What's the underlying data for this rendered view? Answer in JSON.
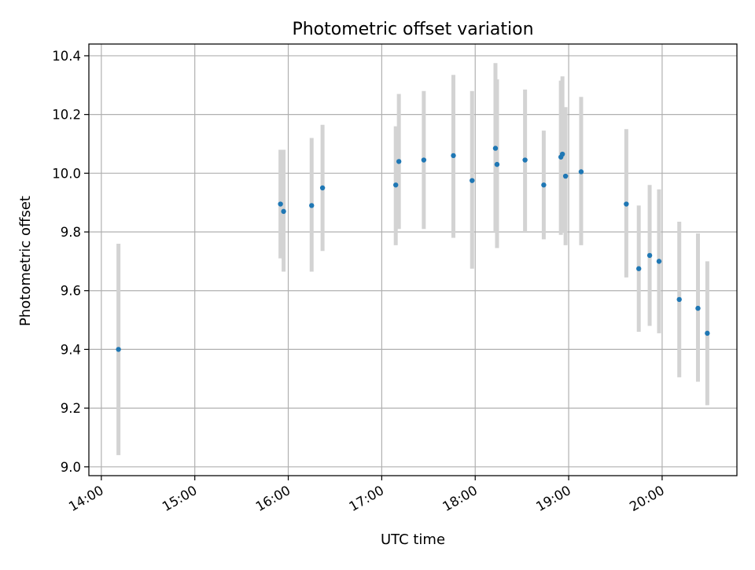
{
  "chart_data": {
    "type": "scatter",
    "title": "Photometric offset variation",
    "xlabel": "UTC time",
    "ylabel": "Photometric offset",
    "xlim": [
      "13:52",
      "20:48"
    ],
    "ylim": [
      8.97,
      10.44
    ],
    "x_ticks": [
      "14:00",
      "15:00",
      "16:00",
      "17:00",
      "18:00",
      "19:00",
      "20:00"
    ],
    "y_ticks": [
      9.0,
      9.2,
      9.4,
      9.6,
      9.8,
      10.0,
      10.2,
      10.4
    ],
    "y_tick_labels": [
      "9.0",
      "9.2",
      "9.4",
      "9.6",
      "9.8",
      "10.0",
      "10.2",
      "10.4"
    ],
    "grid": true,
    "legend": "none",
    "colors": {
      "point": "#1f77b4",
      "errorbar": "#d3d3d3",
      "grid": "#b0b0b0"
    },
    "points": [
      {
        "x": "14:11",
        "y": 9.4,
        "ylow": 9.04,
        "yhigh": 9.76
      },
      {
        "x": "15:55",
        "y": 9.895,
        "ylow": 9.71,
        "yhigh": 10.08
      },
      {
        "x": "15:57",
        "y": 9.87,
        "ylow": 9.665,
        "yhigh": 10.08
      },
      {
        "x": "16:15",
        "y": 9.89,
        "ylow": 9.665,
        "yhigh": 10.12
      },
      {
        "x": "16:22",
        "y": 9.95,
        "ylow": 9.735,
        "yhigh": 10.165
      },
      {
        "x": "17:09",
        "y": 9.96,
        "ylow": 9.755,
        "yhigh": 10.16
      },
      {
        "x": "17:11",
        "y": 10.04,
        "ylow": 9.81,
        "yhigh": 10.27
      },
      {
        "x": "17:27",
        "y": 10.045,
        "ylow": 9.81,
        "yhigh": 10.28
      },
      {
        "x": "17:46",
        "y": 10.06,
        "ylow": 9.78,
        "yhigh": 10.335
      },
      {
        "x": "17:58",
        "y": 9.975,
        "ylow": 9.675,
        "yhigh": 10.28
      },
      {
        "x": "18:13",
        "y": 10.085,
        "ylow": 9.8,
        "yhigh": 10.375
      },
      {
        "x": "18:14",
        "y": 10.03,
        "ylow": 9.745,
        "yhigh": 10.32
      },
      {
        "x": "18:32",
        "y": 10.045,
        "ylow": 9.8,
        "yhigh": 10.285
      },
      {
        "x": "18:44",
        "y": 9.96,
        "ylow": 9.775,
        "yhigh": 10.145
      },
      {
        "x": "18:55",
        "y": 10.055,
        "ylow": 9.79,
        "yhigh": 10.315
      },
      {
        "x": "18:56",
        "y": 10.065,
        "ylow": 9.8,
        "yhigh": 10.33
      },
      {
        "x": "18:58",
        "y": 9.99,
        "ylow": 9.755,
        "yhigh": 10.225
      },
      {
        "x": "19:08",
        "y": 10.005,
        "ylow": 9.755,
        "yhigh": 10.26
      },
      {
        "x": "19:37",
        "y": 9.895,
        "ylow": 9.645,
        "yhigh": 10.15
      },
      {
        "x": "19:45",
        "y": 9.675,
        "ylow": 9.46,
        "yhigh": 9.89
      },
      {
        "x": "19:52",
        "y": 9.72,
        "ylow": 9.48,
        "yhigh": 9.96
      },
      {
        "x": "19:58",
        "y": 9.7,
        "ylow": 9.455,
        "yhigh": 9.945
      },
      {
        "x": "20:11",
        "y": 9.57,
        "ylow": 9.305,
        "yhigh": 9.835
      },
      {
        "x": "20:23",
        "y": 9.54,
        "ylow": 9.29,
        "yhigh": 9.795
      },
      {
        "x": "20:29",
        "y": 9.455,
        "ylow": 9.21,
        "yhigh": 9.7
      }
    ]
  }
}
